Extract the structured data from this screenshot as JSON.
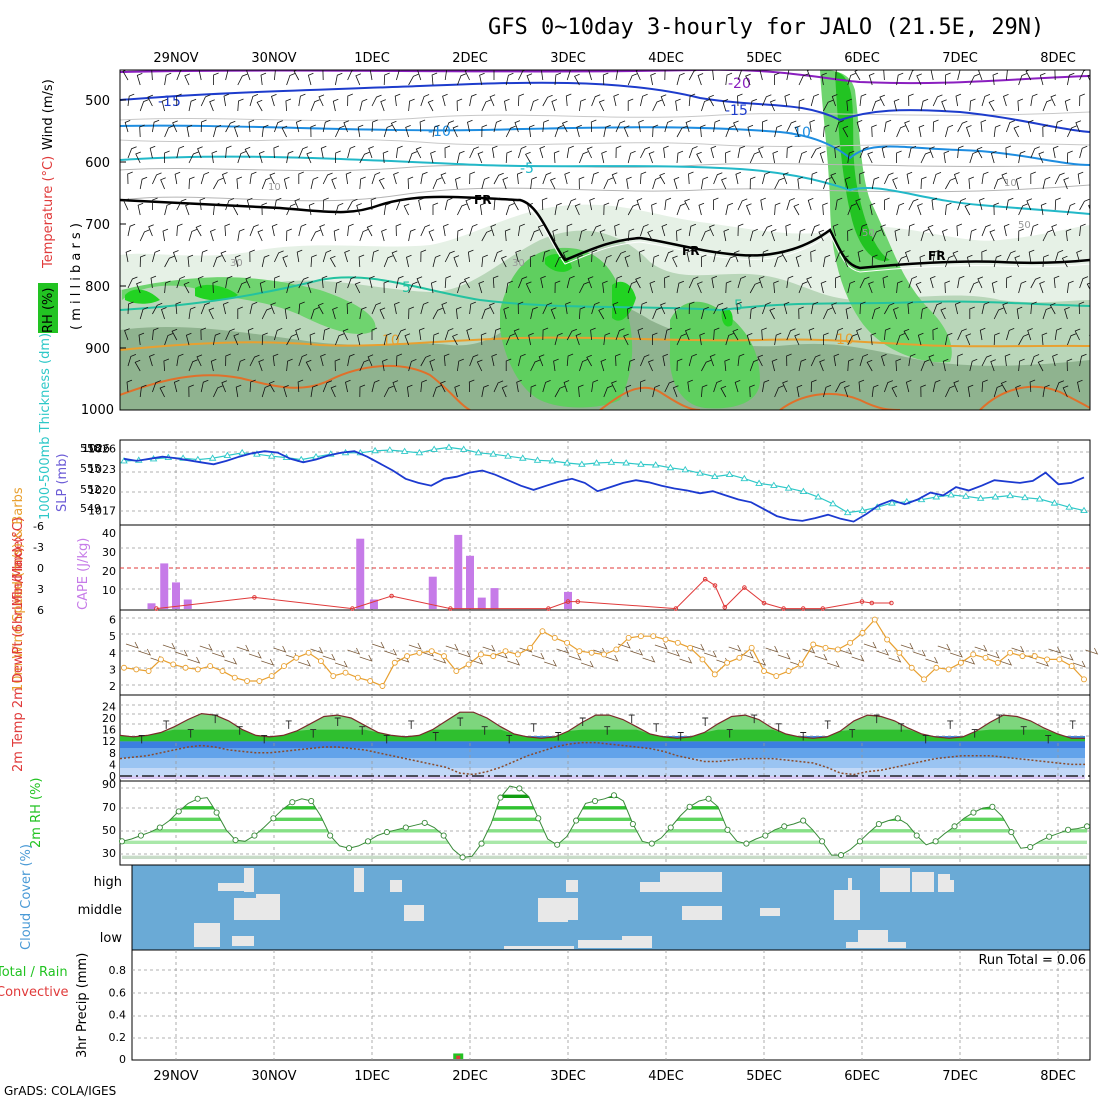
{
  "title": "GFS 0~10day 3-hourly for JALO (21.5E, 29N)",
  "footer": "GrADS: COLA/IGES",
  "dates": [
    "29NOV",
    "30NOV",
    "1DEC",
    "2DEC",
    "3DEC",
    "4DEC",
    "5DEC",
    "6DEC",
    "7DEC",
    "8DEC"
  ],
  "colors": {
    "rh_green": "#22c322",
    "temp_fill": "#2fbf2f",
    "blue_fill": "#3b7fe0",
    "cloud_bg": "#6aaad6",
    "cloud": "#e8e8e8",
    "cape": "#c67be8",
    "lifted": "#e03a3a",
    "speed": "#e8a030",
    "slp": "#1c3ad0",
    "thick": "#2ec8c8"
  },
  "chart_data": [
    {
      "type": "heatmap",
      "panel": "pressure-time cross-section",
      "ylabel_parts": [
        "RH (%)",
        "Temperature (°C)",
        "Wind (m/s)",
        "( m i l l i b a r s )"
      ],
      "yticks": [
        "500",
        "600",
        "700",
        "800",
        "900",
        "1000"
      ],
      "ylim": [
        1000,
        450
      ],
      "contour_labels": {
        "temperature": [
          "-20",
          "-15",
          "-15",
          "-10",
          "-10",
          "-10",
          "-5",
          "5",
          "5",
          "10",
          "10"
        ],
        "freezing_level": [
          "FR",
          "FR",
          "FR"
        ],
        "rh": [
          "10",
          "10",
          "30",
          "30",
          "50",
          "50"
        ]
      }
    },
    {
      "type": "line",
      "panel": "sea level pressure & thickness",
      "ylabel_left": "1000-500mb Thickness (dm)",
      "ylabel_right": "SLP (mb)",
      "yticks_thickness": [
        "558",
        "555",
        "552",
        "549"
      ],
      "yticks_slp": [
        "1026",
        "1023",
        "1020",
        "1017"
      ],
      "series": [
        {
          "name": "SLP (mb)",
          "values": [
            1024.5,
            1024.2,
            1024.5,
            1024.8,
            1024.6,
            1024.3,
            1024.0,
            1023.7,
            1024.2,
            1024.8,
            1025.3,
            1025.6,
            1025.4,
            1024.5,
            1024.0,
            1024.4,
            1025.0,
            1025.4,
            1025.6,
            1024.8,
            1023.8,
            1022.8,
            1021.6,
            1021.0,
            1020.6,
            1021.6,
            1021.9,
            1022.5,
            1022.8,
            1022.2,
            1021.4,
            1020.6,
            1020.0,
            1020.6,
            1021.2,
            1021.6,
            1021.0,
            1019.8,
            1020.4,
            1021.0,
            1021.4,
            1021.1,
            1020.6,
            1020.2,
            1019.9,
            1019.5,
            1019.8,
            1019.2,
            1018.6,
            1018.2,
            1017.2,
            1016.2,
            1015.7,
            1015.5,
            1015.9,
            1016.4,
            1015.8,
            1015.4,
            1016.5,
            1017.8,
            1018.5,
            1017.9,
            1018.6,
            1019.6,
            1019.2,
            1020.4,
            1019.9,
            1020.6,
            1021.4,
            1021.2,
            1021.0,
            1021.3,
            1022.5,
            1020.8,
            1021.0,
            1021.8
          ]
        },
        {
          "name": "Thickness (dm)",
          "values": [
            555.8,
            555.9,
            556.1,
            556.3,
            556.2,
            556.0,
            556.2,
            556.6,
            557.0,
            556.8,
            556.5,
            556.3,
            556.0,
            556.4,
            556.8,
            557.0,
            557.0,
            557.3,
            557.4,
            557.2,
            557.0,
            557.5,
            557.8,
            557.5,
            557.0,
            556.8,
            556.5,
            556.2,
            555.9,
            555.8,
            555.5,
            555.3,
            555.5,
            555.6,
            555.5,
            555.3,
            555.2,
            554.8,
            554.5,
            554.0,
            553.5,
            553.8,
            553.2,
            552.5,
            552.2,
            551.8,
            551.3,
            550.5,
            549.5,
            548.2,
            548.5,
            549.0,
            549.6,
            549.8,
            550.1,
            550.5,
            550.8,
            550.6,
            550.3,
            550.5,
            550.7,
            550.4,
            550.2,
            549.6,
            549.0,
            548.5
          ]
        }
      ]
    },
    {
      "type": "bar",
      "panel": "instability",
      "ylabel_left": "Lifted Index",
      "ylabel_right": "CAPE (J/kg)",
      "yticks_lifted": [
        "-6",
        "-3",
        "0",
        "3",
        "6"
      ],
      "yticks_cape": [
        "40",
        "30",
        "20",
        "10"
      ],
      "series": [
        {
          "name": "CAPE (J/kg)",
          "x_days": [
            0.25,
            0.38,
            0.5,
            0.62,
            2.38,
            2.52,
            3.12,
            3.38,
            3.5,
            3.62,
            3.75,
            4.5
          ],
          "values": [
            3,
            24,
            14,
            5,
            37,
            5,
            17,
            39,
            28,
            6,
            11,
            9
          ]
        },
        {
          "name": "Lifted Index",
          "x_days": [
            0.3,
            1.3,
            2.3,
            2.7,
            3.3,
            4.3,
            4.5,
            4.6,
            5.6,
            5.9,
            6.0,
            6.1,
            6.3,
            6.5,
            6.7,
            6.9,
            7.1,
            7.5,
            7.6,
            7.8
          ],
          "values": [
            5.8,
            4.2,
            5.8,
            4.0,
            5.8,
            5.8,
            4.8,
            4.8,
            5.8,
            1.6,
            2.5,
            5.6,
            2.8,
            5.0,
            5.8,
            5.8,
            5.8,
            4.8,
            5.0,
            5.0
          ]
        }
      ]
    },
    {
      "type": "line",
      "panel": "10m wind",
      "ylabel": "10m Wind Speed (m/s) & Barbs",
      "yticks": [
        "6",
        "5",
        "4",
        "3",
        "2"
      ],
      "ylim": [
        2,
        6.5
      ],
      "series": [
        {
          "name": "Speed (m/s)",
          "values": [
            3.1,
            3.0,
            2.9,
            3.6,
            3.3,
            3.1,
            3.0,
            3.2,
            2.9,
            2.5,
            2.3,
            2.3,
            2.6,
            3.2,
            3.7,
            4.0,
            3.5,
            2.6,
            2.8,
            2.5,
            2.3,
            2.0,
            3.4,
            3.8,
            4.0,
            4.1,
            3.8,
            2.9,
            3.3,
            3.9,
            3.8,
            4.1,
            3.9,
            4.3,
            5.3,
            4.9,
            4.6,
            4.1,
            4.0,
            3.9,
            4.2,
            4.9,
            5.0,
            5.0,
            4.8,
            4.6,
            4.3,
            3.6,
            2.7,
            3.4,
            3.7,
            4.3,
            2.9,
            2.6,
            2.9,
            3.3,
            4.5,
            4.3,
            4.2,
            4.6,
            5.2,
            6.0,
            4.8,
            4.0,
            3.1,
            2.4,
            3.1,
            3.0,
            3.4,
            3.9,
            3.7,
            3.4,
            4.0,
            3.8,
            3.8,
            3.6,
            3.6,
            3.2,
            2.4
          ]
        }
      ]
    },
    {
      "type": "area",
      "panel": "2m temperature",
      "ylabel": "2m Temp 2m DewPt (6hr Min/Max) (°C)",
      "yticks": [
        "24",
        "20",
        "16",
        "12",
        "8",
        "4",
        "0"
      ],
      "ylim": [
        -2,
        24
      ],
      "series": [
        {
          "name": "2m Temp",
          "values": [
            14,
            13.5,
            14,
            15,
            17,
            19.5,
            21.5,
            21,
            19,
            16,
            14,
            13.5,
            14,
            15.5,
            18,
            20.5,
            21,
            20,
            17.5,
            15,
            14,
            13.5,
            14,
            16,
            19,
            22,
            22,
            20,
            17,
            14.5,
            13.5,
            13,
            13.5,
            15.5,
            18.5,
            21,
            21,
            19.5,
            17,
            14.5,
            13.5,
            13,
            13.5,
            15,
            18,
            20.5,
            21,
            19.5,
            16.5,
            14.5,
            13.5,
            13,
            13.5,
            15.5,
            19,
            21,
            20.5,
            19,
            16.5,
            14.5,
            13.5,
            13,
            13.5,
            15.5,
            18.5,
            21,
            20.5,
            19,
            16.5,
            14.5,
            13,
            13
          ]
        },
        {
          "name": "2m DewPt",
          "values": [
            6,
            6.5,
            7,
            8,
            9,
            10,
            10.5,
            10,
            9,
            8.5,
            8,
            8,
            8.5,
            9,
            9.5,
            10,
            10,
            9.5,
            9,
            8,
            7,
            6,
            5,
            4,
            3,
            1,
            0.5,
            1.5,
            3,
            5,
            7,
            8.5,
            10,
            11,
            11.5,
            11.5,
            11,
            10.5,
            10,
            9.5,
            8.5,
            7,
            6,
            5,
            5,
            5.5,
            6,
            6,
            6,
            5.5,
            5,
            4.5,
            3,
            1,
            0.5,
            1.5,
            2,
            3,
            4,
            5,
            6,
            6.5,
            7,
            7,
            7,
            6.5,
            6,
            5.5,
            5,
            4.5,
            4,
            4
          ]
        }
      ]
    },
    {
      "type": "area",
      "panel": "2m relative humidity",
      "ylabel": "2m RH (%)",
      "yticks": [
        "90",
        "70",
        "50",
        "30"
      ],
      "ylim": [
        22,
        92
      ],
      "series": [
        {
          "name": "2m RH (%)",
          "values": [
            40,
            42,
            45,
            48,
            52,
            58,
            66,
            73,
            77,
            78,
            65,
            50,
            41,
            40,
            45,
            52,
            60,
            68,
            74,
            77,
            75,
            62,
            45,
            36,
            34,
            36,
            40,
            45,
            48,
            50,
            52,
            54,
            56,
            52,
            45,
            33,
            26,
            27,
            38,
            55,
            78,
            88,
            86,
            79,
            60,
            42,
            37,
            44,
            58,
            73,
            75,
            77,
            80,
            75,
            55,
            40,
            38,
            43,
            52,
            62,
            70,
            75,
            77,
            70,
            50,
            40,
            38,
            42,
            45,
            50,
            53,
            55,
            58,
            50,
            40,
            28,
            28,
            33,
            40,
            48,
            55,
            58,
            60,
            55,
            45,
            37,
            40,
            47,
            53,
            60,
            65,
            69,
            70,
            62,
            48,
            34,
            35,
            40,
            44,
            47,
            50,
            51,
            53
          ]
        }
      ]
    },
    {
      "type": "heatmap",
      "panel": "cloud cover",
      "ylabel": "Cloud Cover (%)",
      "levels": [
        "high",
        "middle",
        "low"
      ]
    },
    {
      "type": "bar",
      "panel": "precipitation",
      "ylabel": "3hr Precip (mm)",
      "legend": [
        "Total / Rain",
        "Convective"
      ],
      "yticks": [
        "0.8",
        "0.6",
        "0.4",
        "0.2",
        "0"
      ],
      "ylim": [
        0,
        1.0
      ],
      "run_total_label": "Run Total = 0.06",
      "values": [
        {
          "x_day": 3.38,
          "total": 0.05,
          "convective": 0.03
        }
      ]
    }
  ]
}
